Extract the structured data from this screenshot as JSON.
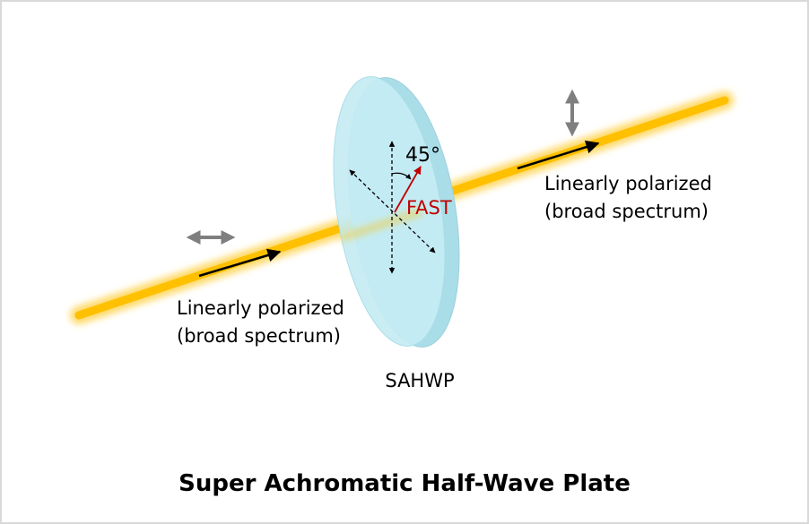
{
  "diagram": {
    "title": "Super Achromatic Half-Wave Plate",
    "plate_label": "SAHWP",
    "angle_label": "45°",
    "axis_label": "FAST",
    "input_label": [
      "Linearly polarized",
      "(broad spectrum)"
    ],
    "output_label": [
      "Linearly polarized",
      "(broad spectrum)"
    ]
  }
}
